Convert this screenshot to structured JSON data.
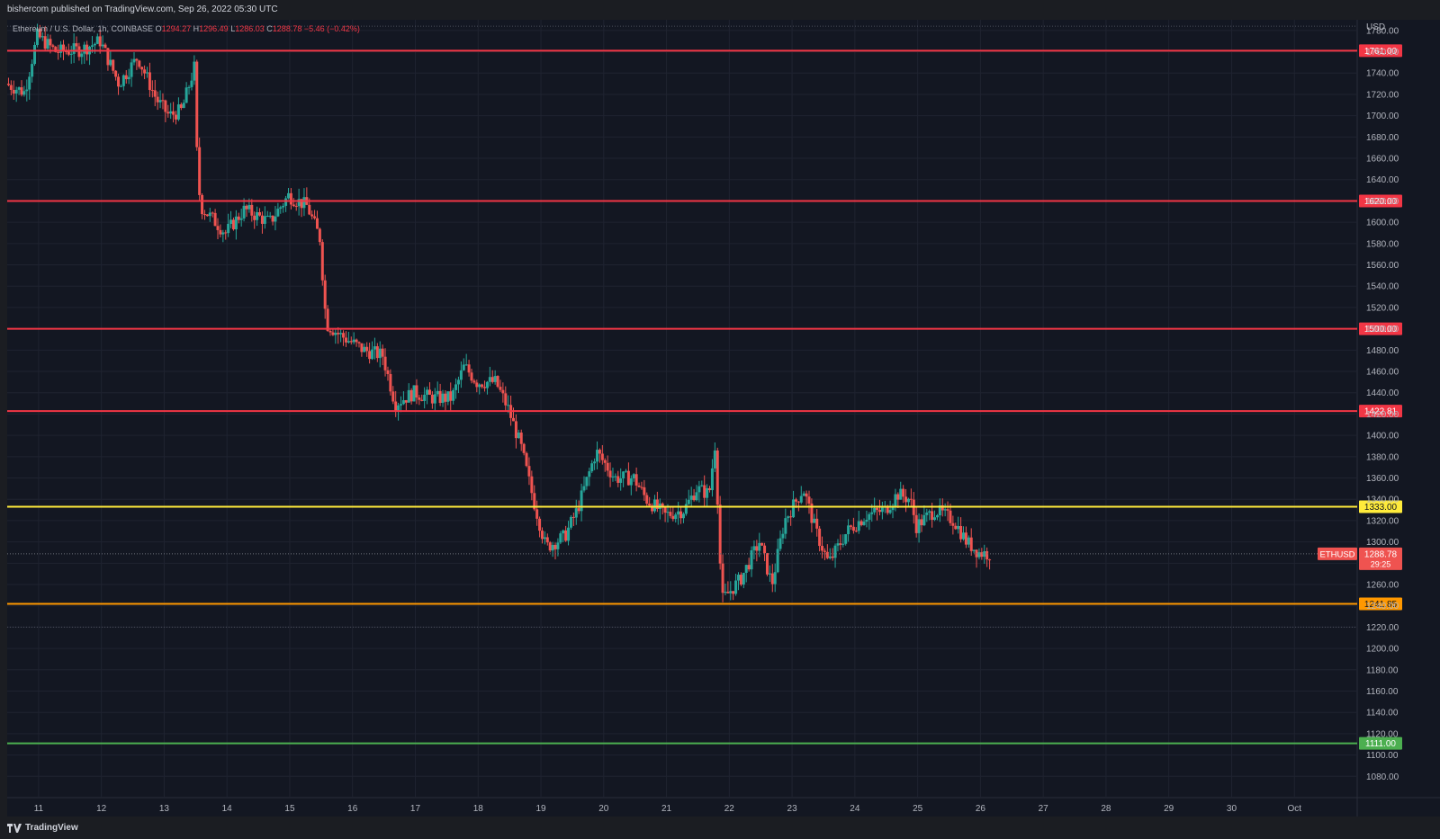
{
  "header": {
    "published": "bishercom published on TradingView.com, Sep 26, 2022 05:30 UTC"
  },
  "footer": {
    "brand": "TradingView",
    "logo_icon": "tradingview-logo-icon"
  },
  "legend": {
    "symbol": "Ethereum / U.S. Dollar, 1h, COINBASE",
    "open_label": "O",
    "open": "1294.27",
    "high_label": "H",
    "high": "1296.49",
    "low_label": "L",
    "low": "1286.03",
    "close_label": "C",
    "close": "1288.78",
    "change": "−5.46 (−0.42%)"
  },
  "colors": {
    "background": "#131722",
    "grid": "#1f2330",
    "axis_text": "#b2b5be",
    "up": "#26a69a",
    "down": "#ef5350",
    "resistance": "#f23645",
    "pivot": "#ffeb3b",
    "support_orange": "#ff9800",
    "support_green": "#4caf50"
  },
  "chart_data": {
    "type": "candlestick",
    "instrument": "ETHUSD",
    "currency": "USD",
    "y_ticks": [
      1780,
      1760,
      1740,
      1720,
      1700,
      1680,
      1660,
      1640,
      1620,
      1600,
      1580,
      1560,
      1540,
      1520,
      1500,
      1480,
      1460,
      1440,
      1420,
      1400,
      1380,
      1360,
      1340,
      1320,
      1300,
      1280,
      1260,
      1240,
      1220,
      1200,
      1180,
      1160,
      1140,
      1120,
      1100,
      1080
    ],
    "ylim": [
      1060,
      1790
    ],
    "x_ticks": [
      "11",
      "12",
      "13",
      "14",
      "15",
      "16",
      "17",
      "18",
      "19",
      "20",
      "21",
      "22",
      "23",
      "24",
      "25",
      "26",
      "27",
      "28",
      "29",
      "30",
      "Oct"
    ],
    "x_days": [
      11,
      12,
      13,
      14,
      15,
      16,
      17,
      18,
      19,
      20,
      21,
      22,
      23,
      24,
      25,
      26,
      27,
      28,
      29,
      30,
      31
    ],
    "xlim": [
      10.5,
      32.0
    ],
    "levels": [
      {
        "value": 1761.0,
        "label": "1761.00",
        "color": "#f23645"
      },
      {
        "value": 1620.0,
        "label": "1620.00",
        "color": "#f23645"
      },
      {
        "value": 1500.0,
        "label": "1500.00",
        "color": "#f23645"
      },
      {
        "value": 1422.81,
        "label": "1422.81",
        "color": "#f23645"
      },
      {
        "value": 1333.0,
        "label": "1333.00",
        "color": "#ffeb3b"
      },
      {
        "value": 1241.85,
        "label": "1241.85",
        "color": "#ff9800"
      },
      {
        "value": 1111.0,
        "label": "1111.00",
        "color": "#4caf50"
      }
    ],
    "last_price": {
      "value": 1288.78,
      "label": "1288.78",
      "symbol_tag": "ETHUSD",
      "countdown": "29:25"
    },
    "dotted_lines": [
      1784,
      1220
    ],
    "price_path": [
      [
        10.5,
        1730
      ],
      [
        10.8,
        1722
      ],
      [
        11.0,
        1775
      ],
      [
        11.3,
        1760
      ],
      [
        11.7,
        1762
      ],
      [
        12.0,
        1770
      ],
      [
        12.3,
        1730
      ],
      [
        12.6,
        1755
      ],
      [
        12.9,
        1715
      ],
      [
        13.1,
        1700
      ],
      [
        13.3,
        1705
      ],
      [
        13.5,
        1745
      ],
      [
        13.55,
        1650
      ],
      [
        13.6,
        1615
      ],
      [
        14.0,
        1590
      ],
      [
        14.3,
        1612
      ],
      [
        14.7,
        1600
      ],
      [
        15.0,
        1625
      ],
      [
        15.3,
        1615
      ],
      [
        15.5,
        1585
      ],
      [
        15.6,
        1505
      ],
      [
        15.8,
        1495
      ],
      [
        16.2,
        1480
      ],
      [
        16.5,
        1475
      ],
      [
        16.7,
        1430
      ],
      [
        17.0,
        1440
      ],
      [
        17.3,
        1435
      ],
      [
        17.6,
        1435
      ],
      [
        17.8,
        1465
      ],
      [
        18.0,
        1450
      ],
      [
        18.3,
        1450
      ],
      [
        18.5,
        1425
      ],
      [
        18.7,
        1390
      ],
      [
        18.9,
        1340
      ],
      [
        19.1,
        1295
      ],
      [
        19.4,
        1305
      ],
      [
        19.6,
        1330
      ],
      [
        19.9,
        1385
      ],
      [
        20.2,
        1360
      ],
      [
        20.5,
        1360
      ],
      [
        20.7,
        1340
      ],
      [
        21.0,
        1325
      ],
      [
        21.3,
        1330
      ],
      [
        21.5,
        1350
      ],
      [
        21.7,
        1345
      ],
      [
        21.8,
        1395
      ],
      [
        21.85,
        1315
      ],
      [
        21.9,
        1245
      ],
      [
        22.2,
        1265
      ],
      [
        22.5,
        1300
      ],
      [
        22.7,
        1260
      ],
      [
        22.9,
        1320
      ],
      [
        23.2,
        1350
      ],
      [
        23.4,
        1310
      ],
      [
        23.6,
        1280
      ],
      [
        23.9,
        1310
      ],
      [
        24.2,
        1325
      ],
      [
        24.5,
        1330
      ],
      [
        24.7,
        1345
      ],
      [
        24.9,
        1340
      ],
      [
        25.0,
        1315
      ],
      [
        25.3,
        1330
      ],
      [
        25.6,
        1320
      ],
      [
        25.8,
        1300
      ],
      [
        26.0,
        1290
      ],
      [
        26.15,
        1288.78
      ]
    ]
  }
}
